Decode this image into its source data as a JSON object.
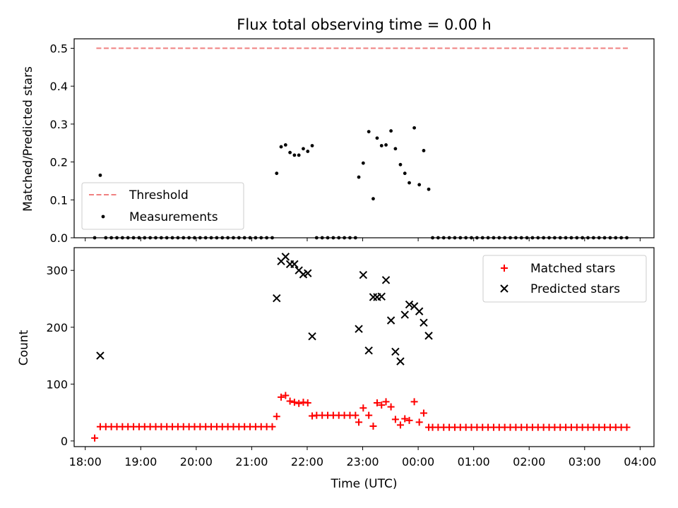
{
  "chart_data": [
    {
      "type": "scatter",
      "title": "Flux total observing time = 0.00 h",
      "xlabel": "",
      "ylabel": "Matched/Predicted stars",
      "xlim": [
        17.8,
        28.25
      ],
      "ylim": [
        0,
        0.525
      ],
      "yticks": [
        0.0,
        0.1,
        0.2,
        0.3,
        0.4,
        0.5
      ],
      "ytick_labels": [
        "0.0",
        "0.1",
        "0.2",
        "0.3",
        "0.4",
        "0.5"
      ],
      "legend_position": "lower-left",
      "threshold": {
        "name": "Threshold",
        "y": 0.5,
        "x": [
          18.2,
          27.8
        ],
        "color": "#f08080",
        "style": "dashed"
      },
      "series": [
        {
          "name": "Measurements",
          "color": "#000000",
          "marker": "dot",
          "points": [
            [
              18.17,
              0.0
            ],
            [
              18.27,
              0.165
            ],
            [
              18.37,
              0.0
            ],
            [
              18.47,
              0.0
            ],
            [
              18.57,
              0.0
            ],
            [
              18.67,
              0.0
            ],
            [
              18.77,
              0.0
            ],
            [
              18.87,
              0.0
            ],
            [
              18.97,
              0.0
            ],
            [
              19.07,
              0.0
            ],
            [
              19.17,
              0.0
            ],
            [
              19.27,
              0.0
            ],
            [
              19.37,
              0.0
            ],
            [
              19.47,
              0.0
            ],
            [
              19.57,
              0.0
            ],
            [
              19.67,
              0.0
            ],
            [
              19.77,
              0.0
            ],
            [
              19.87,
              0.0
            ],
            [
              19.97,
              0.0
            ],
            [
              20.07,
              0.0
            ],
            [
              20.17,
              0.0
            ],
            [
              20.27,
              0.0
            ],
            [
              20.37,
              0.0
            ],
            [
              20.47,
              0.0
            ],
            [
              20.57,
              0.0
            ],
            [
              20.67,
              0.0
            ],
            [
              20.77,
              0.0
            ],
            [
              20.87,
              0.0
            ],
            [
              20.97,
              0.0
            ],
            [
              21.07,
              0.0
            ],
            [
              21.17,
              0.0
            ],
            [
              21.27,
              0.0
            ],
            [
              21.37,
              0.0
            ],
            [
              21.45,
              0.17
            ],
            [
              21.53,
              0.24
            ],
            [
              21.61,
              0.245
            ],
            [
              21.69,
              0.225
            ],
            [
              21.77,
              0.218
            ],
            [
              21.85,
              0.218
            ],
            [
              21.93,
              0.235
            ],
            [
              22.01,
              0.228
            ],
            [
              22.09,
              0.243
            ],
            [
              22.17,
              0.0
            ],
            [
              22.27,
              0.0
            ],
            [
              22.37,
              0.0
            ],
            [
              22.47,
              0.0
            ],
            [
              22.57,
              0.0
            ],
            [
              22.67,
              0.0
            ],
            [
              22.77,
              0.0
            ],
            [
              22.87,
              0.0
            ],
            [
              22.93,
              0.16
            ],
            [
              23.01,
              0.197
            ],
            [
              23.11,
              0.28
            ],
            [
              23.19,
              0.103
            ],
            [
              23.26,
              0.263
            ],
            [
              23.34,
              0.243
            ],
            [
              23.42,
              0.245
            ],
            [
              23.51,
              0.282
            ],
            [
              23.59,
              0.235
            ],
            [
              23.68,
              0.193
            ],
            [
              23.76,
              0.17
            ],
            [
              23.84,
              0.145
            ],
            [
              23.93,
              0.29
            ],
            [
              24.02,
              0.14
            ],
            [
              24.1,
              0.23
            ],
            [
              24.19,
              0.128
            ],
            [
              24.26,
              0.0
            ],
            [
              24.36,
              0.0
            ],
            [
              24.46,
              0.0
            ],
            [
              24.56,
              0.0
            ],
            [
              24.66,
              0.0
            ],
            [
              24.76,
              0.0
            ],
            [
              24.86,
              0.0
            ],
            [
              24.96,
              0.0
            ],
            [
              25.06,
              0.0
            ],
            [
              25.16,
              0.0
            ],
            [
              25.26,
              0.0
            ],
            [
              25.36,
              0.0
            ],
            [
              25.46,
              0.0
            ],
            [
              25.56,
              0.0
            ],
            [
              25.66,
              0.0
            ],
            [
              25.76,
              0.0
            ],
            [
              25.86,
              0.0
            ],
            [
              25.96,
              0.0
            ],
            [
              26.06,
              0.0
            ],
            [
              26.16,
              0.0
            ],
            [
              26.26,
              0.0
            ],
            [
              26.36,
              0.0
            ],
            [
              26.46,
              0.0
            ],
            [
              26.56,
              0.0
            ],
            [
              26.66,
              0.0
            ],
            [
              26.76,
              0.0
            ],
            [
              26.86,
              0.0
            ],
            [
              26.96,
              0.0
            ],
            [
              27.06,
              0.0
            ],
            [
              27.16,
              0.0
            ],
            [
              27.26,
              0.0
            ],
            [
              27.36,
              0.0
            ],
            [
              27.46,
              0.0
            ],
            [
              27.56,
              0.0
            ],
            [
              27.66,
              0.0
            ],
            [
              27.76,
              0.0
            ]
          ]
        }
      ]
    },
    {
      "type": "scatter",
      "title": "",
      "xlabel": "Time (UTC)",
      "ylabel": "Count",
      "xlim": [
        17.8,
        28.25
      ],
      "ylim": [
        -10,
        340
      ],
      "yticks": [
        0,
        100,
        200,
        300
      ],
      "ytick_labels": [
        "0",
        "100",
        "200",
        "300"
      ],
      "xticks": [
        18,
        19,
        20,
        21,
        22,
        23,
        24,
        25,
        26,
        27,
        28
      ],
      "xtick_labels": [
        "18:00",
        "19:00",
        "20:00",
        "21:00",
        "22:00",
        "23:00",
        "00:00",
        "01:00",
        "02:00",
        "03:00",
        "04:00"
      ],
      "legend_position": "top-right",
      "series": [
        {
          "name": "Matched stars",
          "color": "#ff0000",
          "marker": "plus",
          "points": [
            [
              18.17,
              5
            ],
            [
              18.27,
              25
            ],
            [
              18.37,
              25
            ],
            [
              18.47,
              25
            ],
            [
              18.57,
              25
            ],
            [
              18.67,
              25
            ],
            [
              18.77,
              25
            ],
            [
              18.87,
              25
            ],
            [
              18.97,
              25
            ],
            [
              19.07,
              25
            ],
            [
              19.17,
              25
            ],
            [
              19.27,
              25
            ],
            [
              19.37,
              25
            ],
            [
              19.47,
              25
            ],
            [
              19.57,
              25
            ],
            [
              19.67,
              25
            ],
            [
              19.77,
              25
            ],
            [
              19.87,
              25
            ],
            [
              19.97,
              25
            ],
            [
              20.07,
              25
            ],
            [
              20.17,
              25
            ],
            [
              20.27,
              25
            ],
            [
              20.37,
              25
            ],
            [
              20.47,
              25
            ],
            [
              20.57,
              25
            ],
            [
              20.67,
              25
            ],
            [
              20.77,
              25
            ],
            [
              20.87,
              25
            ],
            [
              20.97,
              25
            ],
            [
              21.07,
              25
            ],
            [
              21.17,
              25
            ],
            [
              21.27,
              25
            ],
            [
              21.37,
              25
            ],
            [
              21.45,
              43
            ],
            [
              21.53,
              77
            ],
            [
              21.61,
              80
            ],
            [
              21.69,
              70
            ],
            [
              21.77,
              68
            ],
            [
              21.85,
              66
            ],
            [
              21.93,
              68
            ],
            [
              22.01,
              67
            ],
            [
              22.09,
              44
            ],
            [
              22.17,
              45
            ],
            [
              22.27,
              45
            ],
            [
              22.37,
              45
            ],
            [
              22.47,
              45
            ],
            [
              22.57,
              45
            ],
            [
              22.67,
              45
            ],
            [
              22.77,
              45
            ],
            [
              22.87,
              45
            ],
            [
              22.93,
              33
            ],
            [
              23.01,
              58
            ],
            [
              23.11,
              45
            ],
            [
              23.19,
              26
            ],
            [
              23.26,
              67
            ],
            [
              23.34,
              63
            ],
            [
              23.42,
              69
            ],
            [
              23.51,
              60
            ],
            [
              23.59,
              38
            ],
            [
              23.68,
              28
            ],
            [
              23.76,
              39
            ],
            [
              23.84,
              36
            ],
            [
              23.93,
              69
            ],
            [
              24.02,
              33
            ],
            [
              24.1,
              49
            ],
            [
              24.19,
              24
            ],
            [
              24.26,
              24
            ],
            [
              24.36,
              24
            ],
            [
              24.46,
              24
            ],
            [
              24.56,
              24
            ],
            [
              24.66,
              24
            ],
            [
              24.76,
              24
            ],
            [
              24.86,
              24
            ],
            [
              24.96,
              24
            ],
            [
              25.06,
              24
            ],
            [
              25.16,
              24
            ],
            [
              25.26,
              24
            ],
            [
              25.36,
              24
            ],
            [
              25.46,
              24
            ],
            [
              25.56,
              24
            ],
            [
              25.66,
              24
            ],
            [
              25.76,
              24
            ],
            [
              25.86,
              24
            ],
            [
              25.96,
              24
            ],
            [
              26.06,
              24
            ],
            [
              26.16,
              24
            ],
            [
              26.26,
              24
            ],
            [
              26.36,
              24
            ],
            [
              26.46,
              24
            ],
            [
              26.56,
              24
            ],
            [
              26.66,
              24
            ],
            [
              26.76,
              24
            ],
            [
              26.86,
              24
            ],
            [
              26.96,
              24
            ],
            [
              27.06,
              24
            ],
            [
              27.16,
              24
            ],
            [
              27.26,
              24
            ],
            [
              27.36,
              24
            ],
            [
              27.46,
              24
            ],
            [
              27.56,
              24
            ],
            [
              27.66,
              24
            ],
            [
              27.76,
              24
            ]
          ]
        },
        {
          "name": "Predicted stars",
          "color": "#000000",
          "marker": "x",
          "points": [
            [
              18.27,
              150
            ],
            [
              21.45,
              251
            ],
            [
              21.53,
              316
            ],
            [
              21.61,
              324
            ],
            [
              21.69,
              311
            ],
            [
              21.77,
              311
            ],
            [
              21.85,
              300
            ],
            [
              21.93,
              293
            ],
            [
              22.01,
              295
            ],
            [
              22.09,
              184
            ],
            [
              22.93,
              197
            ],
            [
              23.01,
              292
            ],
            [
              23.11,
              159
            ],
            [
              23.19,
              253
            ],
            [
              23.26,
              253
            ],
            [
              23.34,
              254
            ],
            [
              23.42,
              283
            ],
            [
              23.51,
              212
            ],
            [
              23.59,
              157
            ],
            [
              23.68,
              140
            ],
            [
              23.76,
              222
            ],
            [
              23.84,
              240
            ],
            [
              23.93,
              237
            ],
            [
              24.02,
              228
            ],
            [
              24.1,
              208
            ],
            [
              24.19,
              185
            ]
          ]
        }
      ]
    }
  ]
}
